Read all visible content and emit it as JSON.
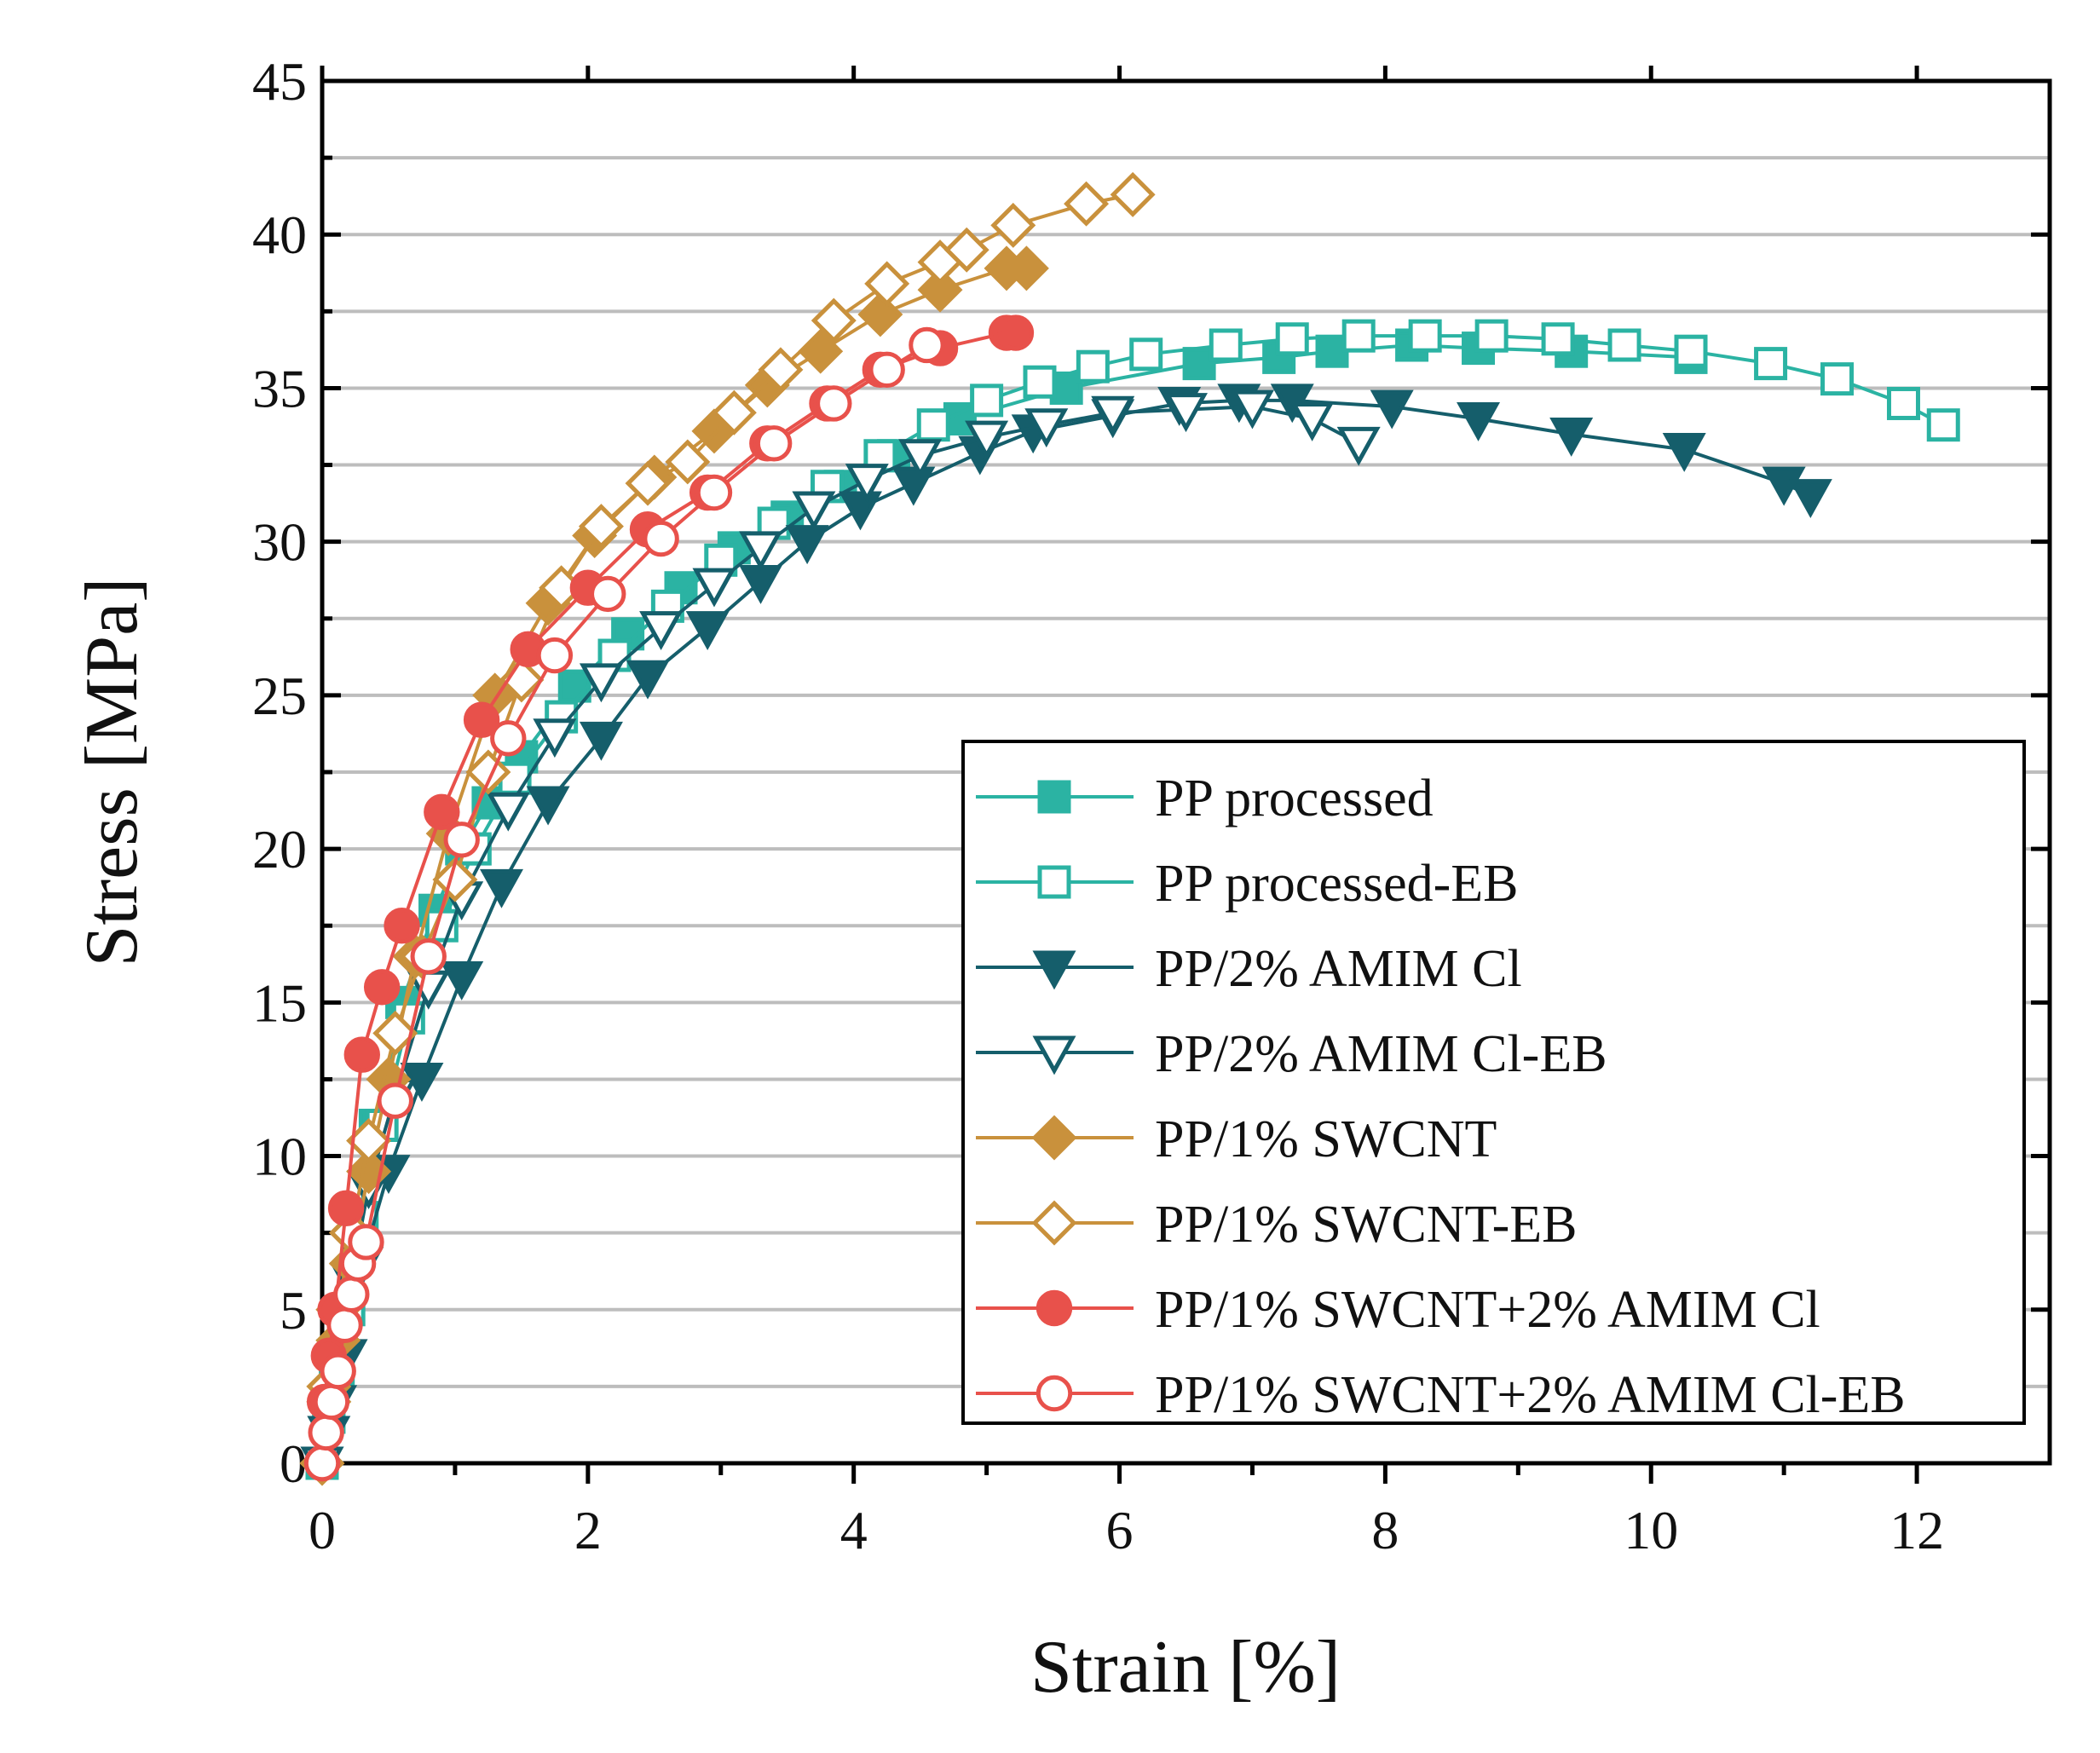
{
  "chart_data": {
    "type": "line",
    "title": "",
    "xlabel": "Strain [%]",
    "ylabel": "Stress [MPa]",
    "xlim": [
      0,
      13
    ],
    "ylim": [
      0,
      45
    ],
    "x_ticks": [
      0,
      2,
      4,
      6,
      8,
      10,
      12
    ],
    "y_ticks": [
      0,
      5,
      10,
      15,
      20,
      25,
      30,
      35,
      40,
      45
    ],
    "grid": "horizontal",
    "legend_position": "bottom-right",
    "series": [
      {
        "name": "PP processed",
        "color": "#2bb3a3",
        "marker": "square",
        "filled": true,
        "x": [
          0,
          0.05,
          0.1,
          0.18,
          0.28,
          0.4,
          0.6,
          0.85,
          1.05,
          1.25,
          1.5,
          1.9,
          2.3,
          2.7,
          3.1,
          3.5,
          3.9,
          4.3,
          4.8,
          5.6,
          6.6,
          7.2,
          7.6,
          8.2,
          8.7,
          9.4,
          10.3
        ],
        "y": [
          0,
          1.5,
          3,
          5,
          8,
          11,
          15,
          18,
          20,
          21.5,
          23,
          25.3,
          27,
          28.5,
          29.8,
          30.8,
          31.8,
          32.8,
          34,
          35,
          35.8,
          36,
          36.2,
          36.4,
          36.3,
          36.2,
          36
        ]
      },
      {
        "name": "PP processed-EB",
        "color": "#2bb3a3",
        "marker": "square",
        "filled": false,
        "x": [
          0,
          0.05,
          0.12,
          0.2,
          0.3,
          0.45,
          0.65,
          0.9,
          1.15,
          1.45,
          1.8,
          2.2,
          2.6,
          3.0,
          3.4,
          3.8,
          4.2,
          4.6,
          5.0,
          5.4,
          5.8,
          6.2,
          6.8,
          7.3,
          7.8,
          8.3,
          8.8,
          9.3,
          9.8,
          10.3,
          10.9,
          11.4,
          11.9,
          12.2
        ],
        "y": [
          0,
          1.5,
          3,
          5,
          8,
          11,
          14.5,
          17.5,
          20,
          22.3,
          24.3,
          26.3,
          27.9,
          29.4,
          30.6,
          31.8,
          32.8,
          33.8,
          34.6,
          35.2,
          35.7,
          36.1,
          36.4,
          36.6,
          36.7,
          36.7,
          36.7,
          36.6,
          36.4,
          36.2,
          35.8,
          35.3,
          34.5,
          33.8
        ]
      },
      {
        "name": "PP/2% AMIM Cl",
        "color": "#155e6b",
        "marker": "triangle-down",
        "filled": true,
        "x": [
          0,
          0.05,
          0.1,
          0.18,
          0.3,
          0.5,
          0.75,
          1.05,
          1.35,
          1.7,
          2.1,
          2.45,
          2.9,
          3.3,
          3.65,
          4.05,
          4.45,
          4.95,
          5.35,
          5.95,
          6.45,
          6.9,
          7.3,
          8.05,
          8.7,
          9.4,
          10.25,
          11.0,
          11.2
        ],
        "y": [
          0,
          1,
          2,
          3.5,
          6.5,
          9.5,
          12.5,
          15.8,
          18.8,
          21.5,
          23.6,
          25.6,
          27.2,
          28.7,
          30,
          31.1,
          31.9,
          32.9,
          33.6,
          34.1,
          34.5,
          34.6,
          34.6,
          34.4,
          34,
          33.5,
          33,
          31.9,
          31.5
        ]
      },
      {
        "name": "PP/2% AMIM Cl-EB",
        "color": "#155e6b",
        "marker": "triangle-down",
        "filled": false,
        "x": [
          0,
          0.05,
          0.12,
          0.22,
          0.35,
          0.55,
          0.8,
          1.05,
          1.4,
          1.75,
          2.1,
          2.55,
          2.95,
          3.3,
          3.7,
          4.1,
          4.5,
          5.0,
          5.45,
          5.95,
          6.5,
          7.0,
          7.45,
          7.8
        ],
        "y": [
          0,
          1.5,
          3.5,
          6,
          9,
          12,
          15.5,
          18.4,
          21.3,
          23.7,
          25.5,
          27.2,
          28.6,
          29.8,
          31.1,
          32,
          32.8,
          33.4,
          33.8,
          34.2,
          34.3,
          34.4,
          34,
          33.2
        ]
      },
      {
        "name": "PP/1% SWCNT",
        "color": "#c9913c",
        "marker": "diamond",
        "filled": true,
        "x": [
          0,
          0.05,
          0.12,
          0.22,
          0.35,
          0.5,
          0.7,
          0.95,
          1.3,
          1.7,
          2.05,
          2.5,
          2.95,
          3.35,
          3.75,
          4.2,
          4.65,
          5.15,
          5.3
        ],
        "y": [
          0,
          2,
          4,
          6.5,
          9.5,
          12.5,
          16.5,
          20.5,
          25,
          28,
          30.2,
          32.1,
          33.6,
          35.1,
          36.2,
          37.4,
          38.2,
          38.9,
          38.9
        ]
      },
      {
        "name": "PP/1% SWCNT-EB",
        "color": "#c9913c",
        "marker": "diamond",
        "filled": false,
        "x": [
          0,
          0.05,
          0.12,
          0.22,
          0.35,
          0.55,
          0.75,
          1.0,
          1.25,
          1.5,
          1.8,
          2.1,
          2.45,
          2.75,
          3.1,
          3.45,
          3.85,
          4.25,
          4.65,
          4.85,
          5.2,
          5.75,
          6.1
        ],
        "y": [
          0,
          2.5,
          5,
          7.5,
          10.5,
          14,
          16.5,
          19,
          22.5,
          25.5,
          28.5,
          30.5,
          31.9,
          32.6,
          34.2,
          35.6,
          37.2,
          38.4,
          39.1,
          39.5,
          40.3,
          41,
          41.3
        ]
      },
      {
        "name": "PP/1% SWCNT+2% AMIM Cl",
        "color": "#e8514b",
        "marker": "circle",
        "filled": true,
        "x": [
          0,
          0.02,
          0.05,
          0.1,
          0.18,
          0.3,
          0.45,
          0.6,
          0.9,
          1.2,
          1.55,
          2.0,
          2.45,
          2.9,
          3.35,
          3.8,
          4.2,
          4.65,
          5.15,
          5.22
        ],
        "y": [
          0,
          2,
          3.5,
          5,
          8.3,
          13.3,
          15.5,
          17.5,
          21.2,
          24.2,
          26.5,
          28.5,
          30.4,
          31.6,
          33.2,
          34.5,
          35.6,
          36.3,
          36.8,
          36.8
        ]
      },
      {
        "name": "PP/1% SWCNT+2% AMIM Cl-EB",
        "color": "#e8514b",
        "marker": "circle",
        "filled": false,
        "x": [
          0,
          0.03,
          0.07,
          0.12,
          0.17,
          0.22,
          0.27,
          0.33,
          0.55,
          0.8,
          1.05,
          1.4,
          1.75,
          2.15,
          2.55,
          2.95,
          3.4,
          3.85,
          4.25,
          4.55
        ],
        "y": [
          0,
          1,
          2,
          3,
          4.5,
          5.5,
          6.5,
          7.2,
          11.8,
          16.5,
          20.3,
          23.6,
          26.3,
          28.3,
          30.1,
          31.6,
          33.2,
          34.5,
          35.6,
          36.4
        ]
      }
    ]
  }
}
